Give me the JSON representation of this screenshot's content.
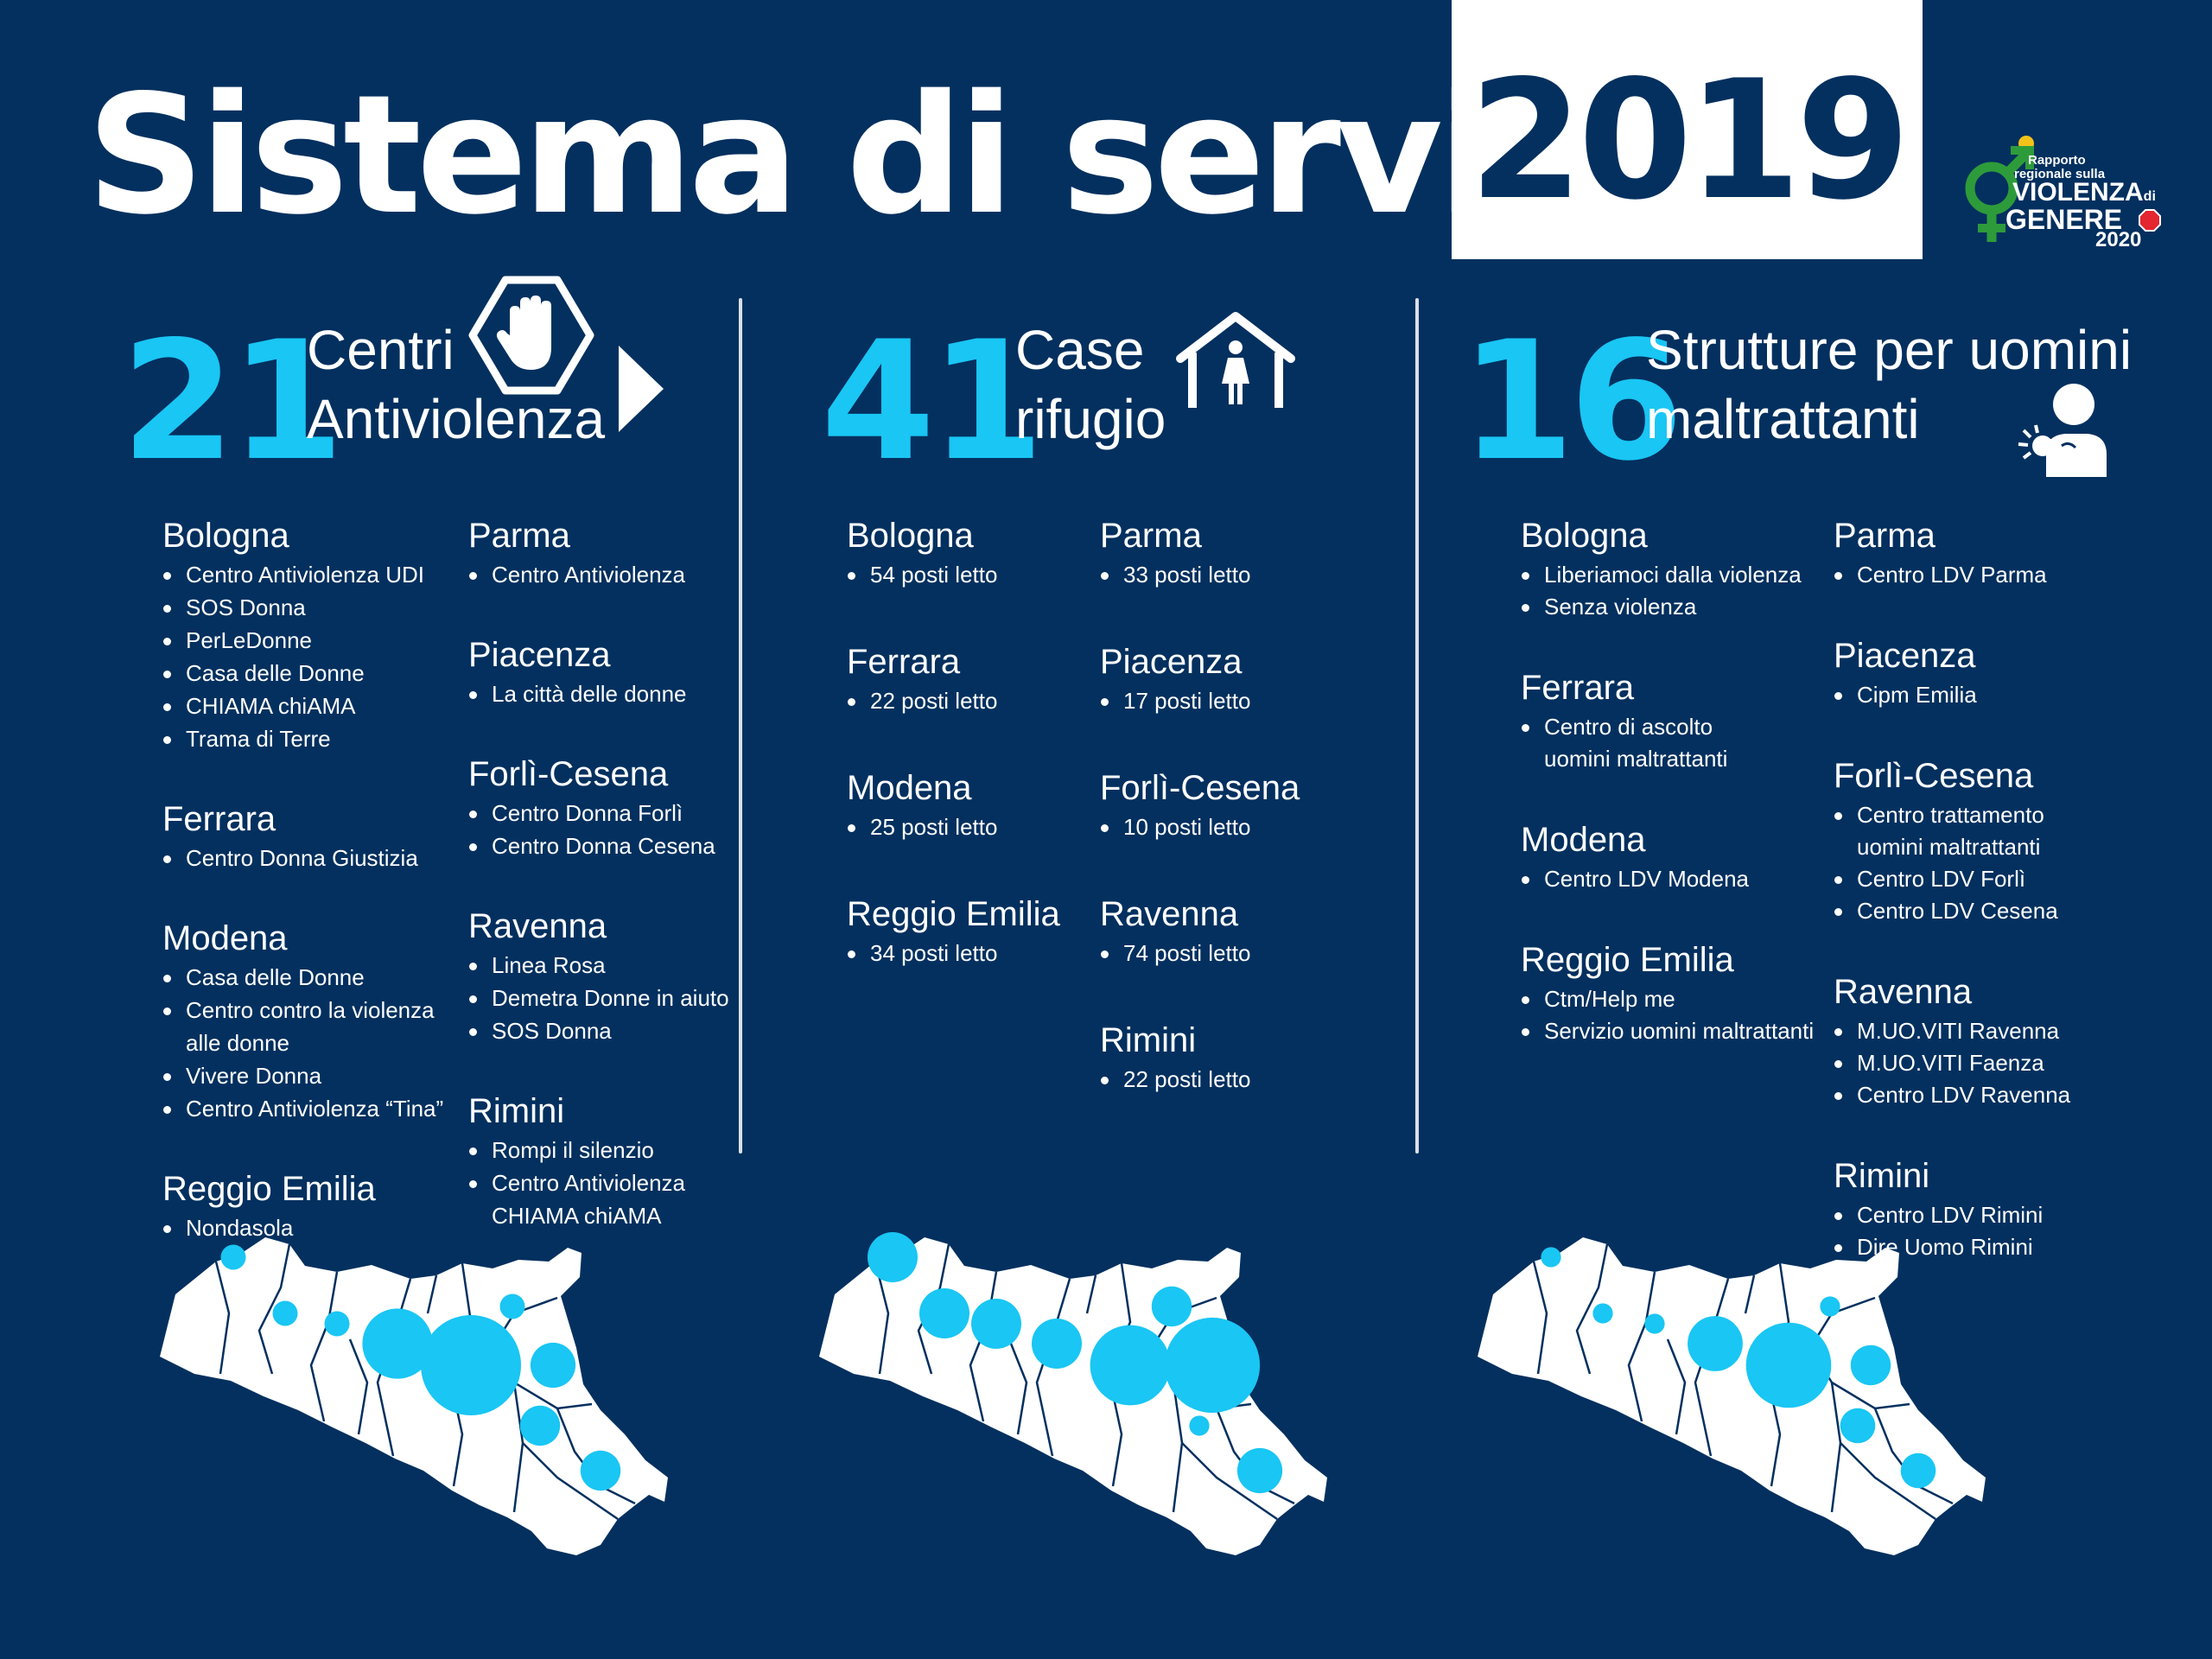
{
  "header": {
    "title": "Sistema di servizi",
    "year": "2019",
    "logo": {
      "line1": "Rapporto",
      "line2": "regionale sulla",
      "line3": "VIOLENZA",
      "line3b": "di",
      "line4": "GENERE",
      "line5": "2020",
      "colors": {
        "accent": "#2e9b3b",
        "red": "#e3262f",
        "yellow": "#f2c21a"
      }
    }
  },
  "colors": {
    "background": "#03305f",
    "accent": "#19c6f4",
    "white": "#ffffff"
  },
  "sections": [
    {
      "count": "21",
      "label_lines": [
        "Centri",
        "Antiviolenza"
      ],
      "icon": "stop-hand-icon",
      "columns": [
        [
          {
            "city": "Bologna",
            "items": [
              "Centro Antiviolenza UDI",
              "SOS Donna",
              "PerLeDonne",
              "Casa delle Donne",
              "CHIAMA chiAMA",
              "Trama di Terre"
            ]
          },
          {
            "city": "Ferrara",
            "items": [
              "Centro Donna Giustizia"
            ]
          },
          {
            "city": "Modena",
            "items": [
              "Casa delle Donne",
              "Centro contro la violenza",
              "alle donne",
              "Vivere Donna",
              "Centro Antiviolenza “Tina”"
            ]
          },
          {
            "city": "Reggio Emilia",
            "items": [
              "Nondasola"
            ]
          }
        ],
        [
          {
            "city": "Parma",
            "items": [
              "Centro Antiviolenza"
            ]
          },
          {
            "city": "Piacenza",
            "items": [
              "La città delle donne"
            ]
          },
          {
            "city": "Forlì-Cesena",
            "items": [
              "Centro Donna Forlì",
              "Centro Donna Cesena"
            ]
          },
          {
            "city": "Ravenna",
            "items": [
              "Linea Rosa",
              "Demetra Donne in aiuto",
              "SOS Donna"
            ]
          },
          {
            "city": "Rimini",
            "items": [
              "Rompi il silenzio",
              "Centro Antiviolenza",
              "CHIAMA chiAMA"
            ]
          }
        ]
      ],
      "map_bubbles": [
        {
          "province": "Piacenza",
          "relative_size": 0.25
        },
        {
          "province": "Parma",
          "relative_size": 0.25
        },
        {
          "province": "Reggio Emilia",
          "relative_size": 0.25
        },
        {
          "province": "Modena",
          "relative_size": 0.7
        },
        {
          "province": "Bologna",
          "relative_size": 1.0
        },
        {
          "province": "Ferrara",
          "relative_size": 0.25
        },
        {
          "province": "Ravenna",
          "relative_size": 0.45
        },
        {
          "province": "Forlì-Cesena",
          "relative_size": 0.4
        },
        {
          "province": "Rimini",
          "relative_size": 0.4
        }
      ]
    },
    {
      "count": "41",
      "label_lines": [
        "Case",
        "rifugio"
      ],
      "icon": "shelter-house-icon",
      "columns": [
        [
          {
            "city": "Bologna",
            "items": [
              "54 posti letto"
            ]
          },
          {
            "city": "Ferrara",
            "items": [
              "22 posti letto"
            ]
          },
          {
            "city": "Modena",
            "items": [
              "25 posti letto"
            ]
          },
          {
            "city": "Reggio Emilia",
            "items": [
              "34 posti letto"
            ]
          }
        ],
        [
          {
            "city": "Parma",
            "items": [
              "33 posti letto"
            ]
          },
          {
            "city": "Piacenza",
            "items": [
              "17 posti letto"
            ]
          },
          {
            "city": "Forlì-Cesena",
            "items": [
              "10 posti letto"
            ]
          },
          {
            "city": "Ravenna",
            "items": [
              "74 posti letto"
            ]
          },
          {
            "city": "Rimini",
            "items": [
              "22 posti letto"
            ]
          }
        ]
      ],
      "map_bubbles": [
        {
          "province": "Piacenza",
          "relative_size": 0.5
        },
        {
          "province": "Parma",
          "relative_size": 0.5
        },
        {
          "province": "Reggio Emilia",
          "relative_size": 0.5
        },
        {
          "province": "Modena",
          "relative_size": 0.5
        },
        {
          "province": "Bologna",
          "relative_size": 0.8
        },
        {
          "province": "Ferrara",
          "relative_size": 0.4
        },
        {
          "province": "Ravenna",
          "relative_size": 0.95
        },
        {
          "province": "Forlì-Cesena",
          "relative_size": 0.2
        },
        {
          "province": "Rimini",
          "relative_size": 0.45
        }
      ]
    },
    {
      "count": "16",
      "label_lines": [
        "Strutture per uomini",
        "maltrattanti"
      ],
      "icon": "aggressor-man-icon",
      "columns": [
        [
          {
            "city": "Bologna",
            "items": [
              "Liberiamoci  dalla violenza",
              "Senza violenza"
            ]
          },
          {
            "city": "Ferrara",
            "items": [
              "Centro di ascolto",
              "uomini maltrattanti"
            ]
          },
          {
            "city": "Modena",
            "items": [
              "Centro LDV Modena"
            ]
          },
          {
            "city": "Reggio Emilia",
            "items": [
              "Ctm/Help me",
              "Servizio uomini maltrattanti"
            ]
          }
        ],
        [
          {
            "city": "Parma",
            "items": [
              "Centro LDV Parma"
            ]
          },
          {
            "city": "Piacenza",
            "items": [
              "Cipm Emilia"
            ]
          },
          {
            "city": "Forlì-Cesena",
            "items": [
              "Centro trattamento",
              "uomini maltrattanti",
              "Centro LDV Forlì",
              "Centro LDV Cesena"
            ]
          },
          {
            "city": "Ravenna",
            "items": [
              "M.UO.VITI Ravenna",
              "M.UO.VITI Faenza",
              "Centro LDV Ravenna"
            ]
          },
          {
            "city": "Rimini",
            "items": [
              "Centro LDV Rimini",
              "Dire Uomo Rimini"
            ]
          }
        ]
      ],
      "map_bubbles": [
        {
          "province": "Piacenza",
          "relative_size": 0.2
        },
        {
          "province": "Parma",
          "relative_size": 0.2
        },
        {
          "province": "Reggio Emilia",
          "relative_size": 0.2
        },
        {
          "province": "Modena",
          "relative_size": 0.55
        },
        {
          "province": "Bologna",
          "relative_size": 0.85
        },
        {
          "province": "Ferrara",
          "relative_size": 0.2
        },
        {
          "province": "Ravenna",
          "relative_size": 0.4
        },
        {
          "province": "Forlì-Cesena",
          "relative_size": 0.35
        },
        {
          "province": "Rimini",
          "relative_size": 0.35
        }
      ]
    }
  ]
}
